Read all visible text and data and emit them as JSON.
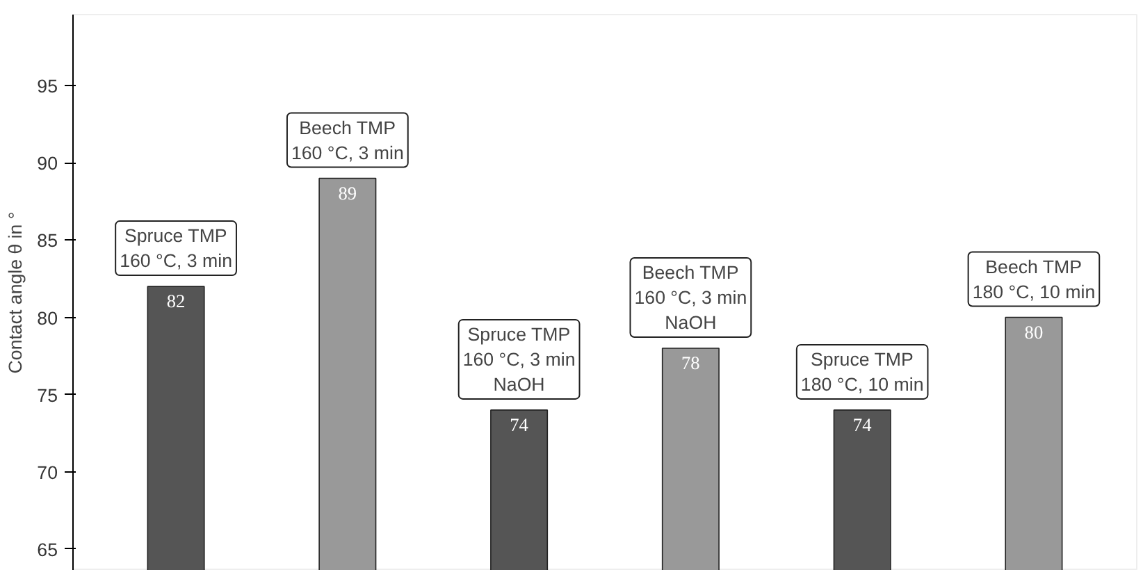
{
  "chart_data": {
    "type": "bar",
    "ylabel": "Contact angle θ in °",
    "categories": [
      null,
      null,
      null,
      null,
      null,
      null
    ],
    "values": [
      82,
      89,
      74,
      78,
      74,
      80
    ],
    "colors": [
      "#555555",
      "#999999",
      "#555555",
      "#999999",
      "#555555",
      "#999999"
    ],
    "ylim": [
      63.6,
      99.6
    ],
    "yticks": [
      65,
      70,
      75,
      80,
      85,
      90,
      95
    ],
    "data_labels": true,
    "grid": false,
    "tick_labels": "y",
    "annotations": [
      {
        "text": "Spruce TMP\n160 °C, 3 min",
        "y": 82
      },
      {
        "text": "Beech TMP\n160 °C, 3 min",
        "y": 89
      },
      {
        "text": "Spruce TMP\n160 °C, 3 min\nNaOH",
        "y": 74
      },
      {
        "text": "Beech TMP\n160 °C, 3 min\nNaOH",
        "y": 78
      },
      {
        "text": "Spruce TMP\n180 °C, 10 min",
        "y": 74
      },
      {
        "text": "Beech TMP\n180 °C, 10 min",
        "y": 80
      }
    ]
  }
}
